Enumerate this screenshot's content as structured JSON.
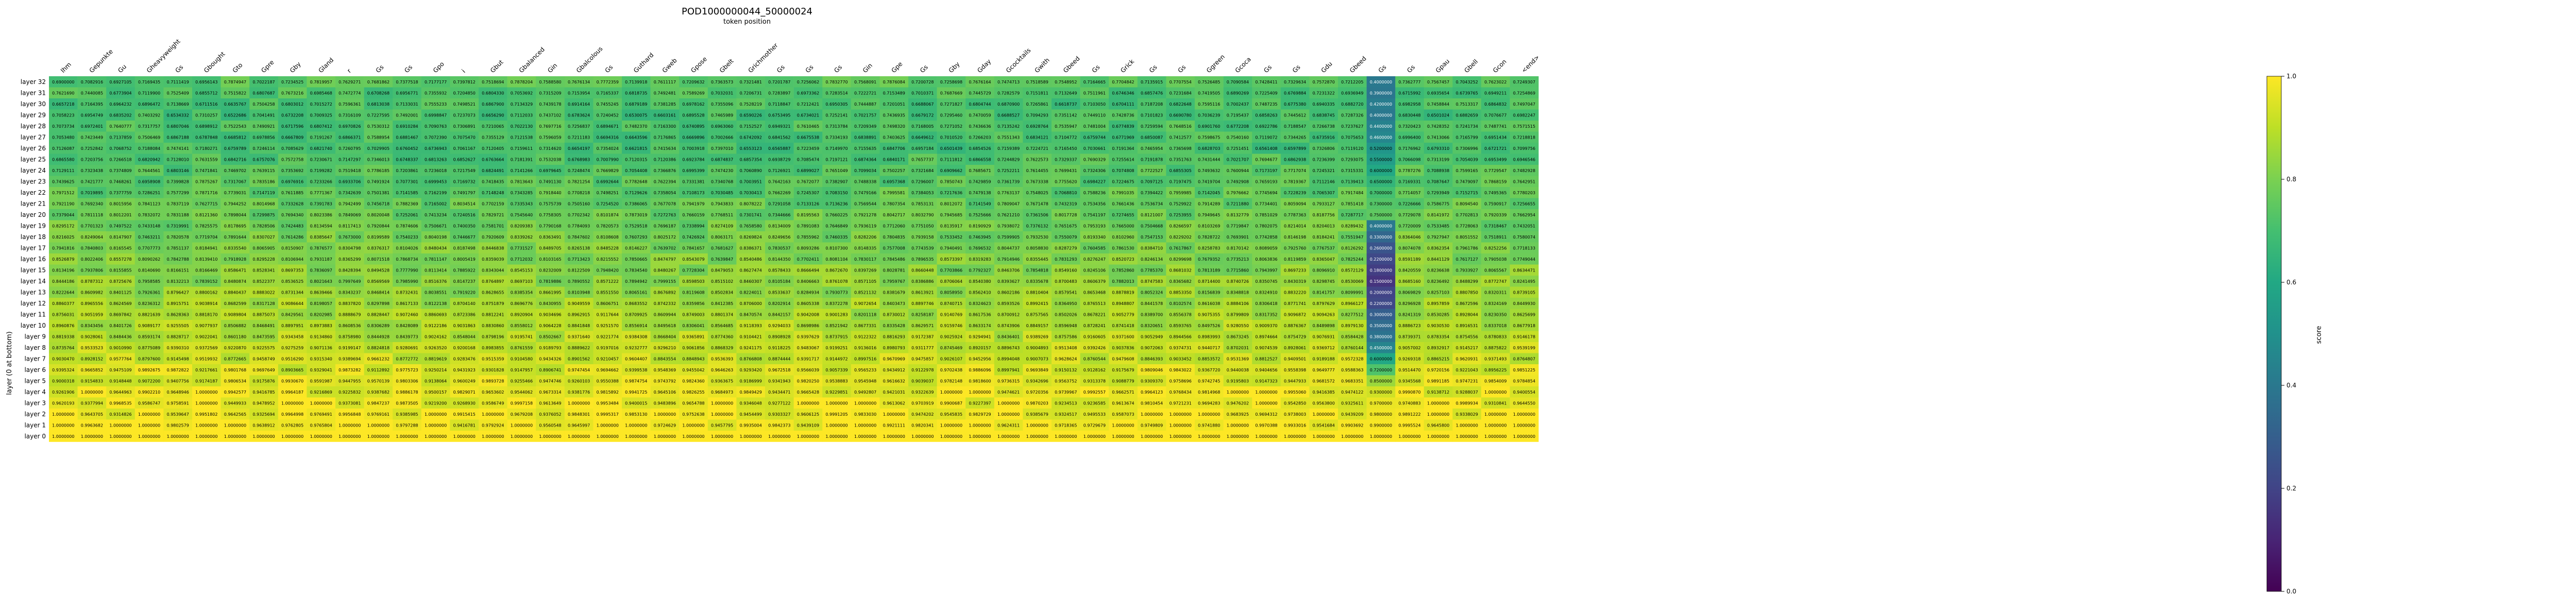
{
  "chart_data": {
    "type": "heatmap",
    "title": "POD1000000044_50000024",
    "xlabel": "token position",
    "ylabel": "layer (0 at bottom)",
    "colorbar_label": "score",
    "colorbar_range": [
      0.0,
      1.0
    ],
    "colorbar_ticks": [
      "0.0",
      "0.2",
      "0.4",
      "0.6",
      "0.8",
      "1.0"
    ],
    "colormap": "viridis",
    "x_tokens": [
      "Ihm",
      "Gepunkte",
      "Gu",
      "Gheavyweight",
      "Gs",
      "Gbought",
      "Gto",
      "Gpre",
      "Gby",
      "Gland",
      "r",
      "Gs",
      "Gs",
      "Gpo",
      "i",
      "Gbut",
      "Gbalanced",
      "Gin",
      "Gbalcolous",
      "Gs",
      "Guthard",
      "Gweb",
      "Gpose",
      "Gbelt",
      "Grichmother",
      "Gs",
      "Gs",
      "Gs",
      "Gin",
      "Gpe",
      "Gs",
      "Gby",
      "Gday",
      "Gcocktails",
      "Gwith",
      "Gbeed",
      "Gs",
      "Grick",
      "Gs",
      "Gs",
      "Ggreen",
      "Gcoca",
      "Gs",
      "Gs",
      "Gdu",
      "Gbeed",
      "Gs",
      "Gs",
      "Gpau",
      "Gbell",
      "Gcon",
      "<end>"
    ],
    "layers": [
      "layer 32",
      "layer 31",
      "layer 30",
      "layer 29",
      "layer 28",
      "layer 27",
      "layer 26",
      "layer 25",
      "layer 24",
      "layer 23",
      "layer 22",
      "layer 21",
      "layer 20",
      "layer 19",
      "layer 18",
      "layer 17",
      "layer 16",
      "layer 15",
      "layer 14",
      "layer 13",
      "layer 12",
      "layer 11",
      "layer 10",
      "layer 9",
      "layer 8",
      "layer 7",
      "layer 6",
      "layer 5",
      "layer 4",
      "layer 3",
      "layer 2",
      "layer 1",
      "layer 0"
    ],
    "row_base": [
      0.74,
      0.72,
      0.71,
      0.7,
      0.72,
      0.71,
      0.7,
      0.72,
      0.73,
      0.74,
      0.75,
      0.76,
      0.77,
      0.78,
      0.79,
      0.8,
      0.81,
      0.82,
      0.83,
      0.84,
      0.86,
      0.87,
      0.88,
      0.89,
      0.91,
      0.92,
      0.94,
      0.95,
      0.96,
      0.97,
      0.98,
      0.99,
      1.0
    ],
    "low_column_index": 46,
    "low_column_values": [
      0.4,
      0.39,
      0.42,
      0.4,
      0.44,
      0.46,
      0.52,
      0.55,
      0.6,
      0.65,
      0.7,
      0.73,
      0.75,
      0.4,
      0.33,
      0.26,
      0.22,
      0.18,
      0.15,
      0.2,
      0.22,
      0.3,
      0.35,
      0.38,
      0.45,
      0.6,
      0.72,
      0.85,
      0.93,
      0.97,
      0.98,
      0.99,
      1.0
    ]
  }
}
